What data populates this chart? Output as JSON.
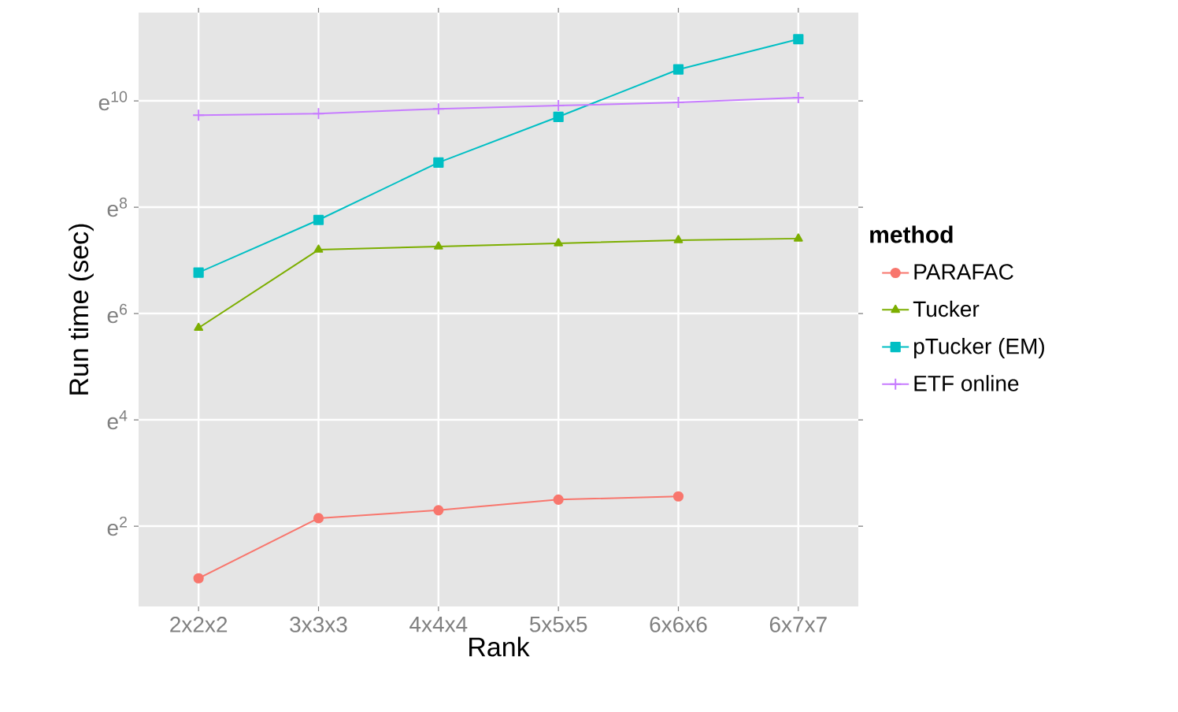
{
  "chart_data": {
    "type": "line",
    "xlabel": "Rank",
    "ylabel": "Run time (sec)",
    "legend_title": "method",
    "categories": [
      "2x2x2",
      "3x3x3",
      "4x4x4",
      "5x5x5",
      "6x6x6",
      "6x7x7"
    ],
    "ylim": [
      0.49,
      11.66
    ],
    "yticks": [
      {
        "value": 2,
        "label": "e$^{2}$"
      },
      {
        "value": 4,
        "label": "e$^{4}$"
      },
      {
        "value": 6,
        "label": "e$^{6}$"
      },
      {
        "value": 8,
        "label": "e$^{8}$"
      },
      {
        "value": 10,
        "label": "e$^{10}$"
      }
    ],
    "grid": true,
    "legend": "right",
    "series": [
      {
        "name": "PARAFAC",
        "color": "#f8766d",
        "marker": "circle",
        "values": [
          1.02,
          2.15,
          2.3,
          2.5,
          2.56,
          null
        ]
      },
      {
        "name": "Tucker",
        "color": "#7cae00",
        "marker": "triangle",
        "values": [
          5.73,
          7.2,
          7.26,
          7.32,
          7.38,
          7.41
        ]
      },
      {
        "name": "pTucker (EM)",
        "color": "#00bfc4",
        "marker": "square",
        "values": [
          6.77,
          7.76,
          8.84,
          9.7,
          10.59,
          11.16
        ]
      },
      {
        "name": "ETF online",
        "color": "#c77cff",
        "marker": "cross",
        "values": [
          9.73,
          9.76,
          9.85,
          9.91,
          9.97,
          10.06
        ]
      }
    ]
  }
}
